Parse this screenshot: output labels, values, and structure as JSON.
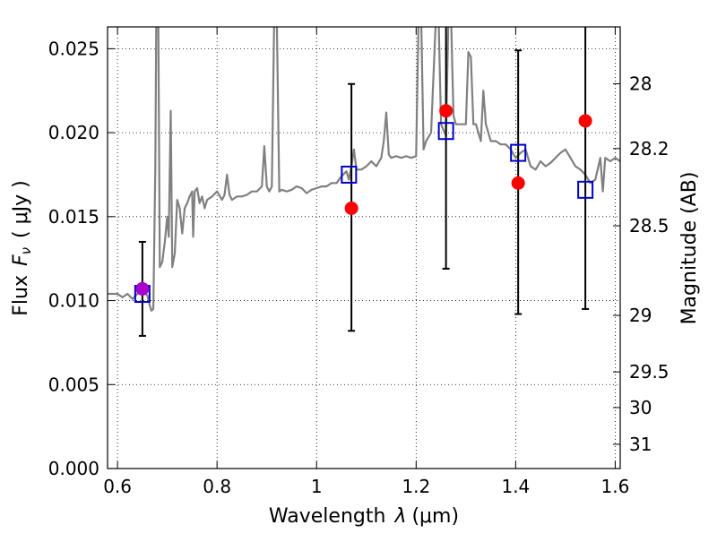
{
  "chart_data": {
    "type": "scatter",
    "xlabel_text": "Wavelength",
    "xlabel_symbol": "λ",
    "xlabel_unit": "(μm)",
    "ylabel_text": "Flux",
    "ylabel_symbol": "F",
    "ylabel_symbol_sub": "ν",
    "ylabel_unit": "( μJy )",
    "y2label": "Magnitude (AB)",
    "xlim": [
      0.58,
      1.61
    ],
    "ylim": [
      0.0,
      0.0263
    ],
    "grid": true,
    "xticks": [
      {
        "value": 0.6,
        "label": "0.6"
      },
      {
        "value": 0.8,
        "label": "0.8"
      },
      {
        "value": 1.0,
        "label": "1"
      },
      {
        "value": 1.2,
        "label": "1.2"
      },
      {
        "value": 1.4,
        "label": "1.4"
      },
      {
        "value": 1.6,
        "label": "1.6"
      }
    ],
    "yticks": [
      {
        "value": 0.0,
        "label": "0.000"
      },
      {
        "value": 0.005,
        "label": "0.005"
      },
      {
        "value": 0.01,
        "label": "0.010"
      },
      {
        "value": 0.015,
        "label": "0.015"
      },
      {
        "value": 0.02,
        "label": "0.020"
      },
      {
        "value": 0.025,
        "label": "0.025"
      }
    ],
    "y2ticks": [
      {
        "value": 28,
        "label": "28"
      },
      {
        "value": 28.2,
        "label": "28.2"
      },
      {
        "value": 28.5,
        "label": "28.5"
      },
      {
        "value": 29,
        "label": "29"
      },
      {
        "value": 29.5,
        "label": "29.5"
      },
      {
        "value": 30,
        "label": "30"
      },
      {
        "value": 31,
        "label": "31"
      }
    ],
    "template_spectrum": {
      "color": "#808080",
      "points": [
        [
          0.58,
          0.0104
        ],
        [
          0.6,
          0.0104
        ],
        [
          0.61,
          0.0102
        ],
        [
          0.62,
          0.0104
        ],
        [
          0.63,
          0.0101
        ],
        [
          0.64,
          0.0104
        ],
        [
          0.65,
          0.0106
        ],
        [
          0.66,
          0.0103
        ],
        [
          0.665,
          0.0097
        ],
        [
          0.668,
          0.0094
        ],
        [
          0.672,
          0.0095
        ],
        [
          0.676,
          0.018
        ],
        [
          0.678,
          0.027
        ],
        [
          0.682,
          0.027
        ],
        [
          0.685,
          0.012
        ],
        [
          0.69,
          0.0123
        ],
        [
          0.695,
          0.0135
        ],
        [
          0.7,
          0.015
        ],
        [
          0.703,
          0.0138
        ],
        [
          0.707,
          0.0213
        ],
        [
          0.71,
          0.012
        ],
        [
          0.715,
          0.0128
        ],
        [
          0.72,
          0.016
        ],
        [
          0.725,
          0.0155
        ],
        [
          0.73,
          0.014
        ],
        [
          0.735,
          0.0155
        ],
        [
          0.74,
          0.0158
        ],
        [
          0.745,
          0.0162
        ],
        [
          0.75,
          0.0165
        ],
        [
          0.752,
          0.0138
        ],
        [
          0.755,
          0.0165
        ],
        [
          0.76,
          0.0167
        ],
        [
          0.765,
          0.0158
        ],
        [
          0.77,
          0.0162
        ],
        [
          0.775,
          0.0155
        ],
        [
          0.78,
          0.016
        ],
        [
          0.79,
          0.0162
        ],
        [
          0.8,
          0.0165
        ],
        [
          0.81,
          0.016
        ],
        [
          0.815,
          0.0163
        ],
        [
          0.82,
          0.0175
        ],
        [
          0.825,
          0.0163
        ],
        [
          0.83,
          0.016
        ],
        [
          0.84,
          0.0162
        ],
        [
          0.85,
          0.0162
        ],
        [
          0.86,
          0.0163
        ],
        [
          0.87,
          0.0165
        ],
        [
          0.88,
          0.0165
        ],
        [
          0.89,
          0.0168
        ],
        [
          0.895,
          0.0192
        ],
        [
          0.9,
          0.0168
        ],
        [
          0.905,
          0.0165
        ],
        [
          0.91,
          0.0168
        ],
        [
          0.915,
          0.027
        ],
        [
          0.92,
          0.027
        ],
        [
          0.925,
          0.0165
        ],
        [
          0.93,
          0.0166
        ],
        [
          0.94,
          0.0165
        ],
        [
          0.95,
          0.0166
        ],
        [
          0.96,
          0.0168
        ],
        [
          0.97,
          0.0167
        ],
        [
          0.98,
          0.0164
        ],
        [
          0.99,
          0.0166
        ],
        [
          1.0,
          0.0167
        ],
        [
          1.01,
          0.0168
        ],
        [
          1.02,
          0.0168
        ],
        [
          1.03,
          0.017
        ],
        [
          1.04,
          0.017
        ],
        [
          1.05,
          0.0174
        ],
        [
          1.06,
          0.0177
        ],
        [
          1.065,
          0.0172
        ],
        [
          1.07,
          0.018
        ],
        [
          1.075,
          0.019
        ],
        [
          1.08,
          0.0178
        ],
        [
          1.09,
          0.0178
        ],
        [
          1.1,
          0.018
        ],
        [
          1.11,
          0.0183
        ],
        [
          1.12,
          0.018
        ],
        [
          1.13,
          0.0185
        ],
        [
          1.135,
          0.0195
        ],
        [
          1.14,
          0.0212
        ],
        [
          1.145,
          0.0187
        ],
        [
          1.15,
          0.0185
        ],
        [
          1.16,
          0.0186
        ],
        [
          1.17,
          0.0185
        ],
        [
          1.18,
          0.0186
        ],
        [
          1.19,
          0.0185
        ],
        [
          1.2,
          0.0186
        ],
        [
          1.205,
          0.027
        ],
        [
          1.21,
          0.027
        ],
        [
          1.215,
          0.019
        ],
        [
          1.22,
          0.0195
        ],
        [
          1.23,
          0.02
        ],
        [
          1.24,
          0.027
        ],
        [
          1.245,
          0.027
        ],
        [
          1.25,
          0.0205
        ],
        [
          1.26,
          0.0198
        ],
        [
          1.265,
          0.027
        ],
        [
          1.27,
          0.027
        ],
        [
          1.275,
          0.021
        ],
        [
          1.28,
          0.0205
        ],
        [
          1.29,
          0.0205
        ],
        [
          1.3,
          0.0205
        ],
        [
          1.305,
          0.0248
        ],
        [
          1.31,
          0.0245
        ],
        [
          1.315,
          0.0205
        ],
        [
          1.32,
          0.0205
        ],
        [
          1.33,
          0.0195
        ],
        [
          1.335,
          0.0225
        ],
        [
          1.34,
          0.0205
        ],
        [
          1.35,
          0.0195
        ],
        [
          1.36,
          0.0195
        ],
        [
          1.37,
          0.0193
        ],
        [
          1.38,
          0.0193
        ],
        [
          1.39,
          0.019
        ],
        [
          1.4,
          0.0185
        ],
        [
          1.41,
          0.0188
        ],
        [
          1.42,
          0.019
        ],
        [
          1.43,
          0.018
        ],
        [
          1.44,
          0.0178
        ],
        [
          1.45,
          0.0183
        ],
        [
          1.46,
          0.018
        ],
        [
          1.47,
          0.0182
        ],
        [
          1.48,
          0.0185
        ],
        [
          1.49,
          0.0188
        ],
        [
          1.5,
          0.019
        ],
        [
          1.51,
          0.0185
        ],
        [
          1.52,
          0.018
        ],
        [
          1.53,
          0.0178
        ],
        [
          1.54,
          0.0175
        ],
        [
          1.55,
          0.017
        ],
        [
          1.56,
          0.0172
        ],
        [
          1.57,
          0.0185
        ],
        [
          1.575,
          0.0165
        ],
        [
          1.58,
          0.0185
        ],
        [
          1.59,
          0.0183
        ],
        [
          1.6,
          0.0185
        ],
        [
          1.61,
          0.0183
        ]
      ]
    },
    "observed_points": {
      "color": "#ff0000",
      "points": [
        {
          "x": 0.65,
          "y": 0.0107,
          "yerr_low": 0.0079,
          "yerr_high": 0.0135,
          "color": "#aa00cc"
        },
        {
          "x": 1.07,
          "y": 0.0155,
          "yerr_low": 0.0082,
          "yerr_high": 0.0229
        },
        {
          "x": 1.26,
          "y": 0.0213,
          "yerr_low": 0.0119,
          "yerr_high": 0.0272
        },
        {
          "x": 1.405,
          "y": 0.017,
          "yerr_low": 0.0092,
          "yerr_high": 0.0249
        },
        {
          "x": 1.54,
          "y": 0.0207,
          "yerr_low": 0.0095,
          "yerr_high": 0.0272
        }
      ]
    },
    "model_points": {
      "color": "#0000cc",
      "points": [
        {
          "x": 0.65,
          "y": 0.0104
        },
        {
          "x": 1.065,
          "y": 0.0175
        },
        {
          "x": 1.26,
          "y": 0.0201
        },
        {
          "x": 1.405,
          "y": 0.0188
        },
        {
          "x": 1.54,
          "y": 0.0166
        }
      ]
    }
  }
}
